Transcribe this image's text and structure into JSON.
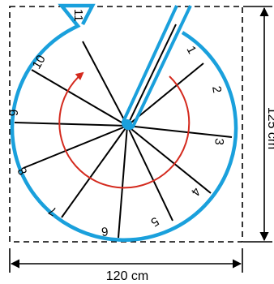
{
  "diagram": {
    "width_label": "120 cm",
    "height_label": "125 cm",
    "step_labels": [
      "1",
      "2",
      "3",
      "4",
      "5",
      "6",
      "7",
      "8",
      "9",
      "10",
      "11"
    ],
    "colors": {
      "outline": "#1aa0dc",
      "arrow": "#d42a1e",
      "lines": "#000000"
    }
  }
}
